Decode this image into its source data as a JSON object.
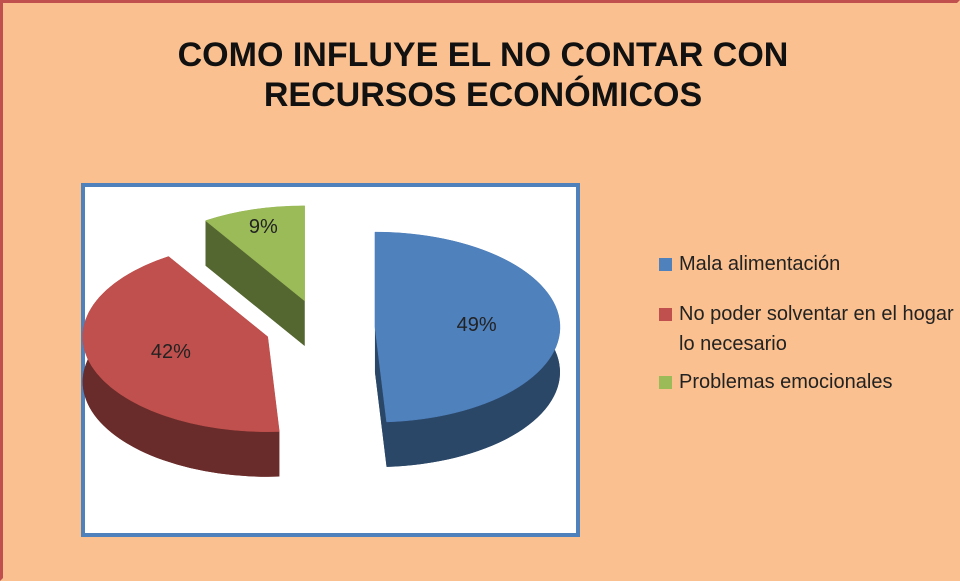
{
  "chart_data": {
    "type": "pie",
    "title": "COMO INFLUYE EL NO CONTAR CON RECURSOS ECONÓMICOS",
    "categories": [
      "Mala alimentación",
      "No poder solventar en el hogar lo necesario",
      "Problemas emocionales"
    ],
    "values": [
      49,
      42,
      9
    ],
    "value_labels": [
      "49%",
      "42%",
      "9%"
    ],
    "colors": [
      "#4f81bd",
      "#c0504d",
      "#9bbb59"
    ],
    "legend": "right"
  }
}
